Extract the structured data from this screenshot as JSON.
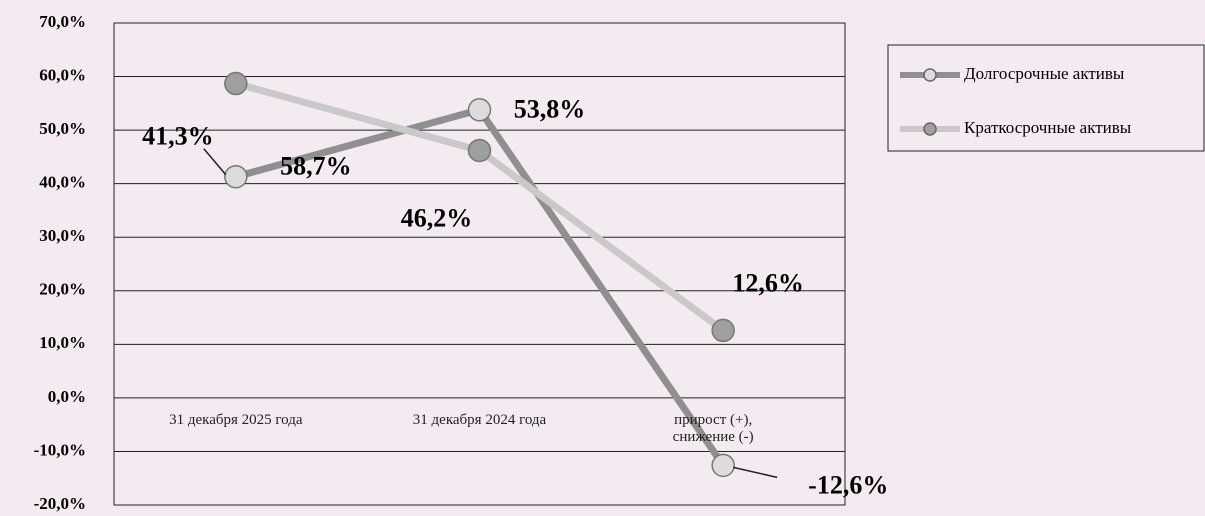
{
  "chart_data": {
    "type": "line",
    "categories": [
      "31 декабря 2025 года",
      "31 декабря 2024 года",
      "прирост (+), снижение (-)"
    ],
    "series": [
      {
        "name": "Долгосрочные активы",
        "color": "#8f8f8f",
        "marker_color": "#dcdcdc",
        "values": [
          41.3,
          53.8,
          -12.6
        ],
        "value_labels": [
          "41,3%",
          "53,8%",
          "-12,6%"
        ]
      },
      {
        "name": "Краткосрочные активы",
        "color": "#c9c9c9",
        "marker_color": "#9f9f9f",
        "values": [
          58.7,
          46.2,
          12.6
        ],
        "value_labels": [
          "58,7%",
          "46,2%",
          "12,6%"
        ]
      }
    ],
    "ylim": [
      -20,
      70
    ],
    "yticks": [
      {
        "value": -20,
        "label": "-20,0%"
      },
      {
        "value": -10,
        "label": "-10,0%"
      },
      {
        "value": 0,
        "label": "0,0%"
      },
      {
        "value": 10,
        "label": "10,0%"
      },
      {
        "value": 20,
        "label": "20,0%"
      },
      {
        "value": 30,
        "label": "30,0%"
      },
      {
        "value": 40,
        "label": "40,0%"
      },
      {
        "value": 50,
        "label": "50,0%"
      },
      {
        "value": 60,
        "label": "60,0%"
      },
      {
        "value": 70,
        "label": "70,0%"
      }
    ],
    "grid": true,
    "legend": "right"
  }
}
